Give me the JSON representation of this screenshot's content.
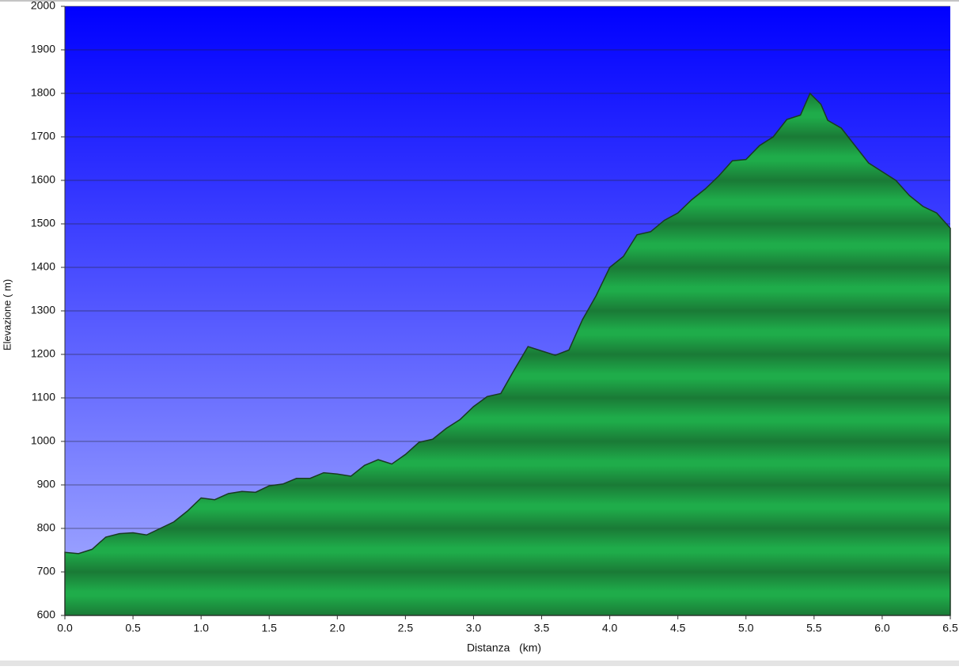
{
  "chart_data": {
    "type": "area",
    "x_label": "Distanza   (km)",
    "y_label": "Elevazione ( m)",
    "x": [
      0,
      0.1,
      0.2,
      0.3,
      0.4,
      0.5,
      0.6,
      0.7,
      0.8,
      0.9,
      1.0,
      1.1,
      1.2,
      1.3,
      1.4,
      1.5,
      1.6,
      1.7,
      1.8,
      1.9,
      2.0,
      2.1,
      2.2,
      2.3,
      2.4,
      2.5,
      2.6,
      2.7,
      2.8,
      2.9,
      3.0,
      3.1,
      3.2,
      3.3,
      3.4,
      3.5,
      3.6,
      3.7,
      3.8,
      3.9,
      4.0,
      4.1,
      4.2,
      4.3,
      4.4,
      4.5,
      4.6,
      4.7,
      4.8,
      4.9,
      5.0,
      5.1,
      5.2,
      5.3,
      5.4,
      5.47,
      5.55,
      5.6,
      5.7,
      5.8,
      5.9,
      6.0,
      6.1,
      6.2,
      6.3,
      6.4,
      6.5
    ],
    "values": [
      745,
      742,
      752,
      780,
      788,
      790,
      785,
      800,
      815,
      840,
      870,
      866,
      880,
      885,
      883,
      898,
      902,
      915,
      915,
      928,
      925,
      920,
      945,
      958,
      948,
      970,
      998,
      1005,
      1030,
      1050,
      1080,
      1103,
      1110,
      1165,
      1218,
      1208,
      1198,
      1210,
      1280,
      1335,
      1400,
      1425,
      1475,
      1482,
      1508,
      1525,
      1555,
      1580,
      1610,
      1645,
      1648,
      1680,
      1700,
      1740,
      1750,
      1800,
      1775,
      1738,
      1720,
      1680,
      1640,
      1620,
      1600,
      1565,
      1540,
      1525,
      1490
    ],
    "color": "#1fa84a",
    "xlim": [
      0,
      6.5
    ],
    "ylim": [
      600,
      2000
    ],
    "xticks": [
      {
        "value": 0,
        "label": "0.0"
      },
      0.5,
      {
        "value": 1,
        "label": "1.0"
      },
      1.5,
      {
        "value": 2,
        "label": "2.0"
      },
      2.5,
      {
        "value": 3,
        "label": "3.0"
      },
      3.5,
      {
        "value": 4,
        "label": "4.0"
      },
      4.5,
      {
        "value": 5,
        "label": "5.0"
      },
      5.5,
      {
        "value": 6,
        "label": "6.0"
      },
      6.5
    ],
    "yticks": [
      600,
      700,
      800,
      900,
      1000,
      1100,
      1200,
      1300,
      1400,
      1500,
      1600,
      1700,
      1800,
      1900,
      2000
    ],
    "grid": true
  }
}
